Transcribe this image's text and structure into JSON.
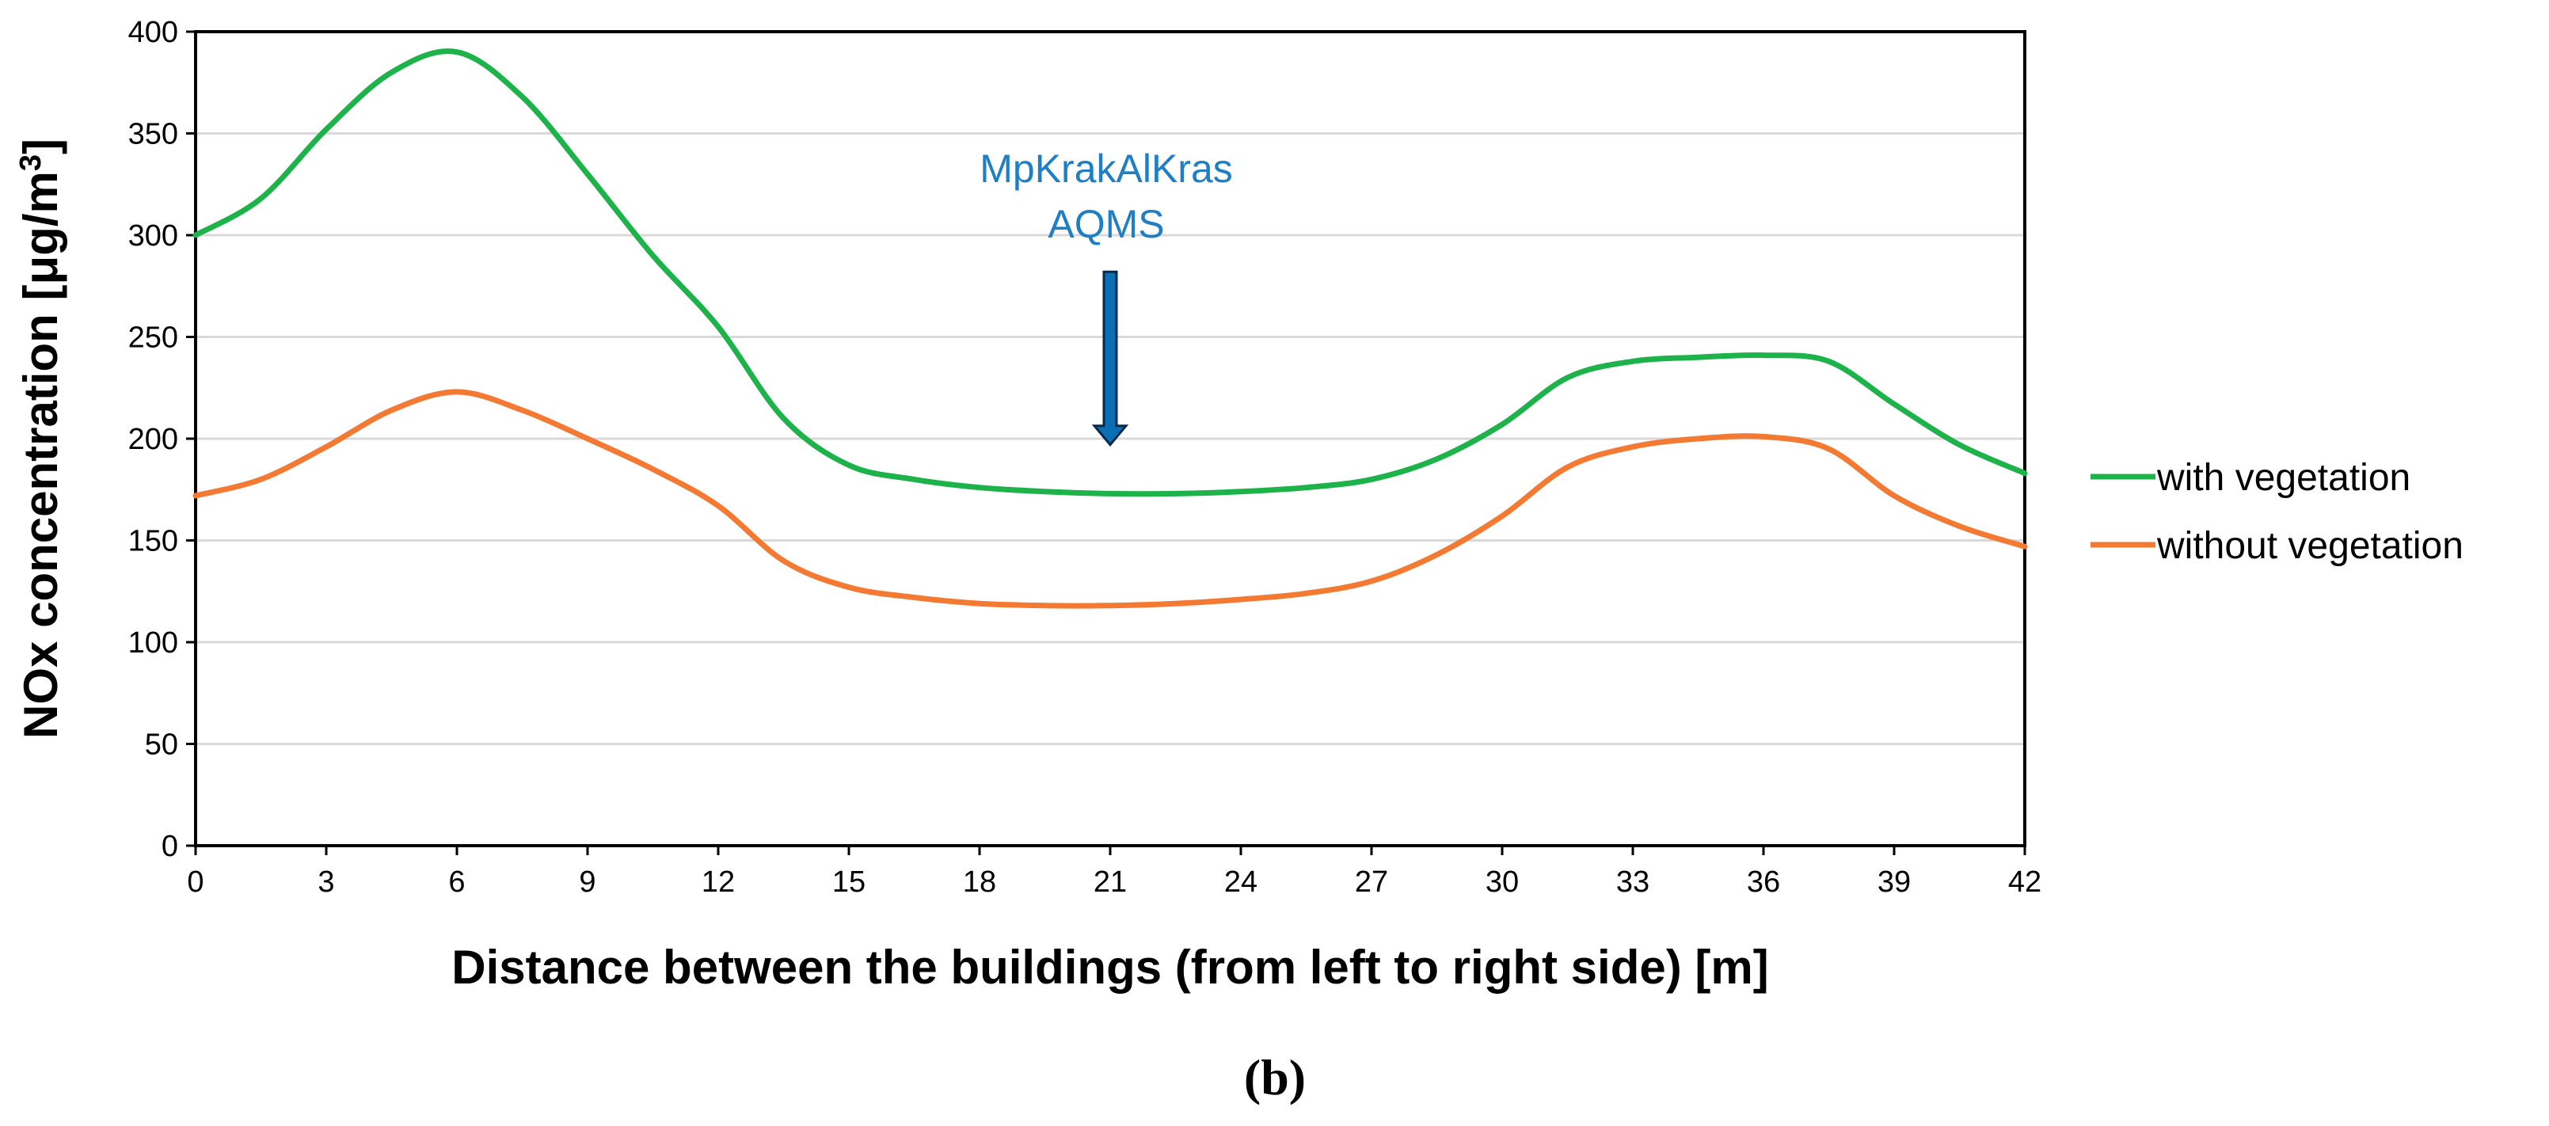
{
  "chart_data": {
    "type": "line",
    "title": "",
    "xlabel": "Distance between the buildings (from left to right side) [m]",
    "ylabel_main": "NOx concentration [μg/m",
    "ylabel_sup": "3",
    "ylabel_end": "]",
    "xlim": [
      0,
      42
    ],
    "ylim": [
      0,
      400
    ],
    "x_ticks": [
      0,
      3,
      6,
      9,
      12,
      15,
      18,
      21,
      24,
      27,
      30,
      33,
      36,
      39,
      42
    ],
    "y_ticks": [
      0,
      50,
      100,
      150,
      200,
      250,
      300,
      350,
      400
    ],
    "grid": "horizontal",
    "legend_position": "right",
    "x": [
      0,
      1.5,
      3,
      4.5,
      6,
      7.5,
      9,
      10.5,
      12,
      13.5,
      15,
      16.5,
      18,
      19.5,
      21,
      22.5,
      24,
      25.5,
      27,
      28.5,
      30,
      31.5,
      33,
      34.5,
      36,
      37.5,
      39,
      40.5,
      42
    ],
    "series": [
      {
        "name": "with vegetation",
        "color": "#1db34a",
        "values": [
          300,
          318,
          352,
          380,
          390,
          368,
          330,
          290,
          255,
          210,
          187,
          180,
          176,
          174,
          173,
          173,
          174,
          176,
          180,
          190,
          207,
          230,
          238,
          240,
          241,
          238,
          217,
          197,
          183
        ]
      },
      {
        "name": "without vegetation",
        "color": "#f47a33",
        "values": [
          172,
          180,
          196,
          214,
          223,
          214,
          200,
          185,
          167,
          140,
          127,
          122,
          119,
          118,
          118,
          119,
          121,
          124,
          130,
          143,
          162,
          186,
          196,
          200,
          201,
          195,
          172,
          157,
          147
        ]
      }
    ],
    "annotations": [
      {
        "text_line1": "MpKrakAlKras",
        "text_line2": "AQMS",
        "x": 21,
        "y_arrow_top": 282,
        "y_arrow_bottom": 197,
        "color": "#1f7fc4",
        "arrow_fill": "#0b6fb6"
      }
    ]
  },
  "panel_label": "(b)"
}
